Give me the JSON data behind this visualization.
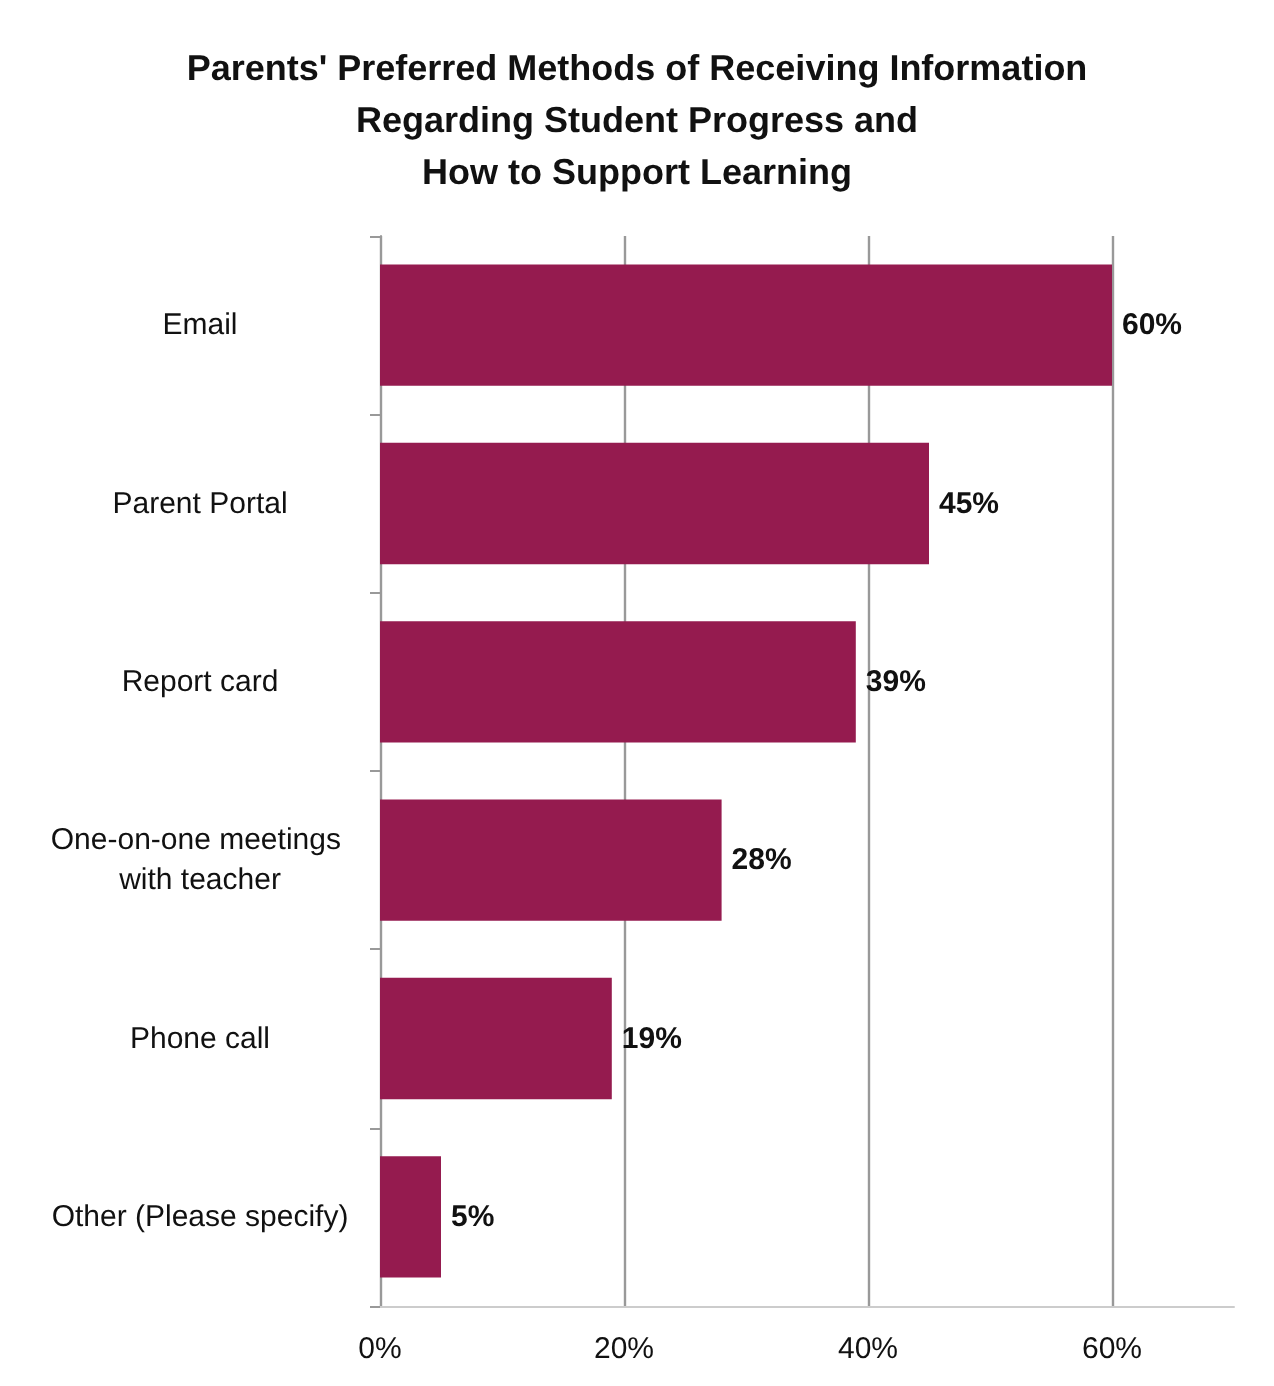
{
  "chart_data": {
    "type": "bar",
    "orientation": "horizontal",
    "title": "Parents' Preferred Methods of Receiving Information\nRegarding Student Progress and\nHow to Support Learning",
    "categories": [
      "Email",
      "Parent Portal",
      "Report card",
      "One-on-one meetings with teacher",
      "Phone call",
      "Other (Please specify)"
    ],
    "values": [
      60,
      45,
      39,
      28,
      19,
      5
    ],
    "value_labels": [
      "60%",
      "45%",
      "39%",
      "28%",
      "19%",
      "5%"
    ],
    "color": "#951b4f",
    "xlim": [
      0,
      70
    ],
    "xticks": [
      {
        "value": 0,
        "label": "0%"
      },
      {
        "value": 20,
        "label": "20%"
      },
      {
        "value": 40,
        "label": "40%"
      },
      {
        "value": 60,
        "label": "60%"
      }
    ],
    "grid": "x"
  }
}
